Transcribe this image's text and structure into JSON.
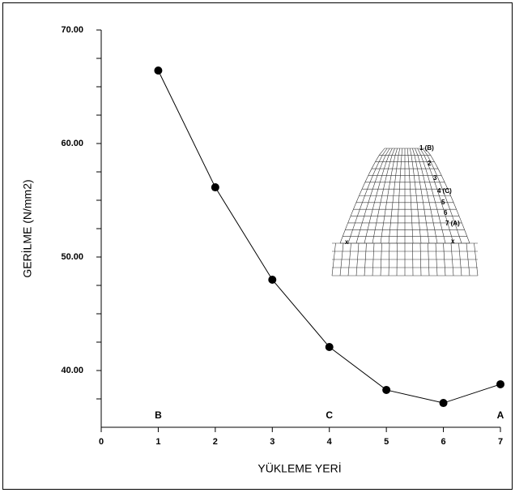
{
  "chart_data": {
    "type": "line",
    "x_label": "YÜKLEME YERİ",
    "y_label": "GERİLME (N/mm2)",
    "x": [
      1,
      2,
      3,
      4,
      5,
      6,
      7
    ],
    "series": [
      {
        "color": "#000000",
        "values": [
          66.43,
          56.14,
          48.0,
          42.07,
          38.29,
          37.14,
          38.79
        ]
      }
    ],
    "xlim": [
      0,
      7
    ],
    "xticks": [
      0,
      1,
      2,
      3,
      4,
      5,
      6,
      7
    ],
    "ylim": [
      35,
      70
    ],
    "yticks": [
      {
        "value": 40,
        "label": "40.00"
      },
      {
        "value": 50,
        "label": "50.00"
      },
      {
        "value": 60,
        "label": "60.00"
      },
      {
        "value": 70,
        "label": "70.00"
      }
    ],
    "yminor_ticks": [
      37.5,
      42.5,
      45,
      47.5,
      52.5,
      55,
      57.5,
      62.5,
      65,
      67.5
    ],
    "annotations": [
      {
        "text": "B",
        "x": 1
      },
      {
        "text": "C",
        "x": 4
      },
      {
        "text": "A",
        "x": 7
      }
    ],
    "inset_labels": [
      "1 (B)",
      "2",
      "3",
      "4 (C)",
      "5",
      "6",
      "7 (A)",
      "x",
      "x"
    ]
  }
}
